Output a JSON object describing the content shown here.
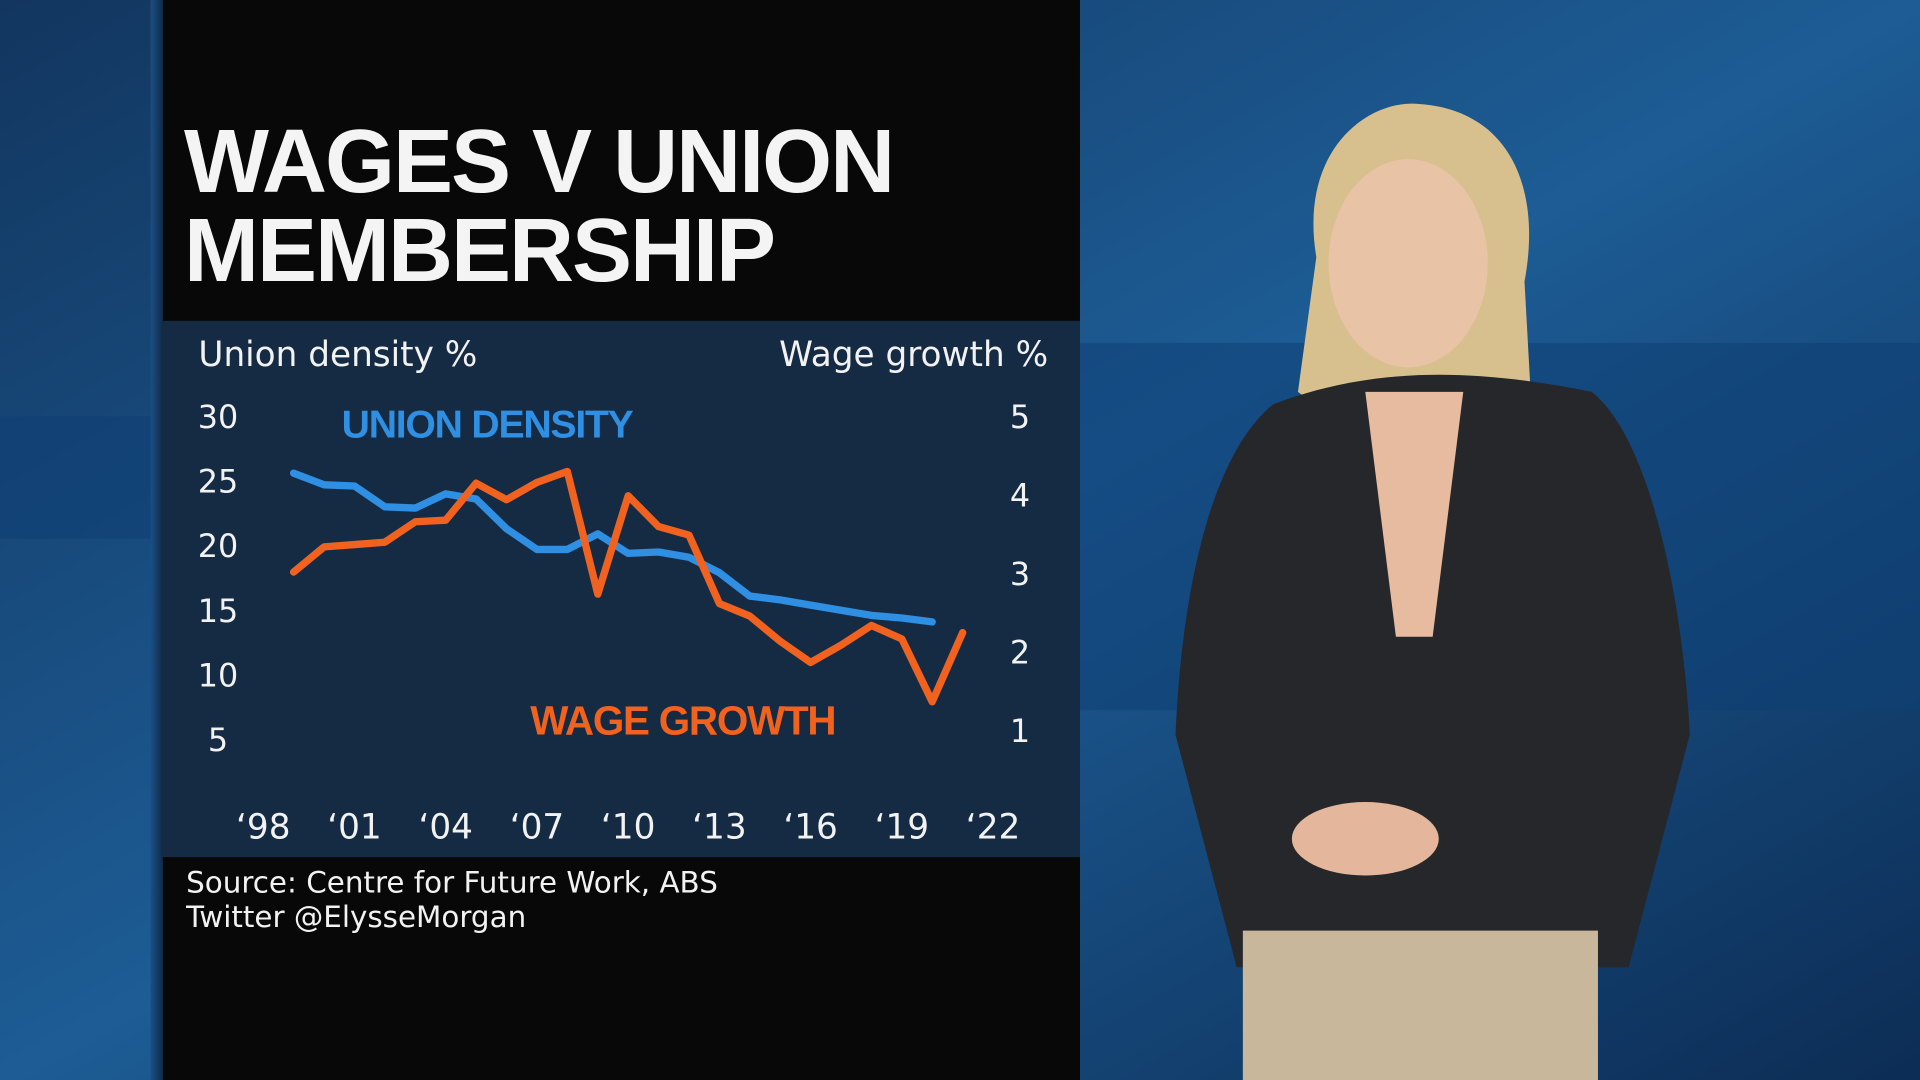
{
  "chart_data": {
    "type": "line",
    "title": "WAGES V UNION MEMBERSHIP",
    "ylabel": "Union density %",
    "y2label": "Wage growth %",
    "x": [
      1999,
      2000,
      2001,
      2002,
      2003,
      2004,
      2005,
      2006,
      2007,
      2008,
      2009,
      2010,
      2011,
      2012,
      2013,
      2014,
      2015,
      2016,
      2017,
      2018,
      2019,
      2020,
      2021
    ],
    "series": [
      {
        "name": "UNION DENSITY",
        "color": "#2f8fe2",
        "axis": "y",
        "values": [
          25.8,
          24.9,
          24.8,
          23.2,
          23.1,
          24.2,
          23.8,
          21.5,
          19.9,
          19.9,
          21.1,
          19.6,
          19.7,
          19.3,
          18.1,
          16.3,
          16.0,
          15.6,
          15.2,
          14.8,
          14.6,
          14.3,
          null
        ]
      },
      {
        "name": "WAGE GROWTH",
        "color": "#f2621f",
        "axis": "y2",
        "values": [
          3.05,
          3.37,
          3.4,
          3.43,
          3.69,
          3.71,
          4.18,
          3.97,
          4.19,
          4.33,
          2.77,
          4.02,
          3.63,
          3.52,
          2.65,
          2.49,
          2.17,
          1.9,
          2.12,
          2.37,
          2.2,
          1.4,
          2.28
        ]
      }
    ],
    "xlim": [
      1998,
      2022
    ],
    "xticks": [
      {
        "value": 1998,
        "label": "‘98"
      },
      {
        "value": 2001,
        "label": "‘01"
      },
      {
        "value": 2004,
        "label": "‘04"
      },
      {
        "value": 2007,
        "label": "‘07"
      },
      {
        "value": 2010,
        "label": "‘10"
      },
      {
        "value": 2013,
        "label": "‘13"
      },
      {
        "value": 2016,
        "label": "‘16"
      },
      {
        "value": 2019,
        "label": "‘19"
      },
      {
        "value": 2022,
        "label": "‘22"
      }
    ],
    "ylim": [
      0,
      30
    ],
    "yticks": [
      30,
      25,
      20,
      15,
      10,
      5
    ],
    "y2lim": [
      0,
      5
    ],
    "y2ticks": [
      5,
      4,
      3,
      2,
      1
    ],
    "grid": false,
    "source": "Source: Centre for Future Work, ABS",
    "credit": "Twitter @ElysseMorgan"
  }
}
